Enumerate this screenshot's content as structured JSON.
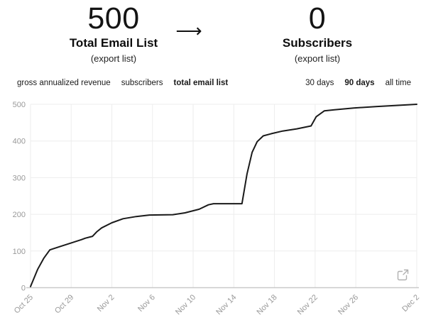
{
  "header": {
    "left": {
      "value": "500",
      "label": "Total Email List",
      "sublabel": "(export list)"
    },
    "arrow_glyph": "⟶",
    "right": {
      "value": "0",
      "label": "Subscribers",
      "sublabel": "(export list)"
    }
  },
  "toolbar": {
    "metric_tabs": [
      {
        "label": "gross annualized revenue",
        "active": false
      },
      {
        "label": "subscribers",
        "active": false
      },
      {
        "label": "total email list",
        "active": true
      }
    ],
    "range_tabs": [
      {
        "label": "30 days",
        "active": false
      },
      {
        "label": "90 days",
        "active": true
      },
      {
        "label": "all time",
        "active": false
      }
    ]
  },
  "chart_data": {
    "type": "line",
    "title": "",
    "xlabel": "",
    "ylabel": "",
    "x_range": [
      0,
      38
    ],
    "y_range": [
      0,
      500
    ],
    "grid": true,
    "legend": "none",
    "x_ticks": [
      {
        "label": "Oct 25",
        "day": 0
      },
      {
        "label": "Oct 29",
        "day": 4
      },
      {
        "label": "Nov 2",
        "day": 8
      },
      {
        "label": "Nov 6",
        "day": 12
      },
      {
        "label": "Nov 10",
        "day": 16
      },
      {
        "label": "Nov 14",
        "day": 20
      },
      {
        "label": "Nov 18",
        "day": 24
      },
      {
        "label": "Nov 22",
        "day": 28
      },
      {
        "label": "Nov 26",
        "day": 32
      },
      {
        "label": "Dec 2",
        "day": 38
      }
    ],
    "y_ticks": [
      0,
      100,
      200,
      300,
      400,
      500
    ],
    "series": [
      {
        "name": "total email list",
        "points": [
          [
            0,
            3
          ],
          [
            0.7,
            50
          ],
          [
            1.3,
            80
          ],
          [
            1.9,
            103
          ],
          [
            3,
            113
          ],
          [
            4,
            122
          ],
          [
            5,
            131
          ],
          [
            5.4,
            135
          ],
          [
            6.1,
            140
          ],
          [
            6.5,
            152
          ],
          [
            7,
            163
          ],
          [
            8,
            177
          ],
          [
            9.1,
            188
          ],
          [
            10.4,
            194
          ],
          [
            11.7,
            198
          ],
          [
            14,
            199
          ],
          [
            15.2,
            204
          ],
          [
            16.6,
            214
          ],
          [
            17.5,
            226
          ],
          [
            18,
            229
          ],
          [
            20.8,
            229
          ],
          [
            21.3,
            310
          ],
          [
            21.8,
            369
          ],
          [
            22.3,
            398
          ],
          [
            22.9,
            414
          ],
          [
            23.7,
            420
          ],
          [
            24.8,
            427
          ],
          [
            26.2,
            433
          ],
          [
            27.6,
            441
          ],
          [
            28.1,
            466
          ],
          [
            28.9,
            482
          ],
          [
            29.9,
            485
          ],
          [
            31.8,
            490
          ],
          [
            34.1,
            494
          ],
          [
            36,
            497
          ],
          [
            38,
            500
          ]
        ]
      }
    ],
    "line_color": "#1a1a1a",
    "grid_color": "#ededed",
    "axis_color": "#c9c9c9",
    "tick_label_color": "#999999"
  },
  "icons": {
    "export_chart": "open-in-new-window"
  }
}
